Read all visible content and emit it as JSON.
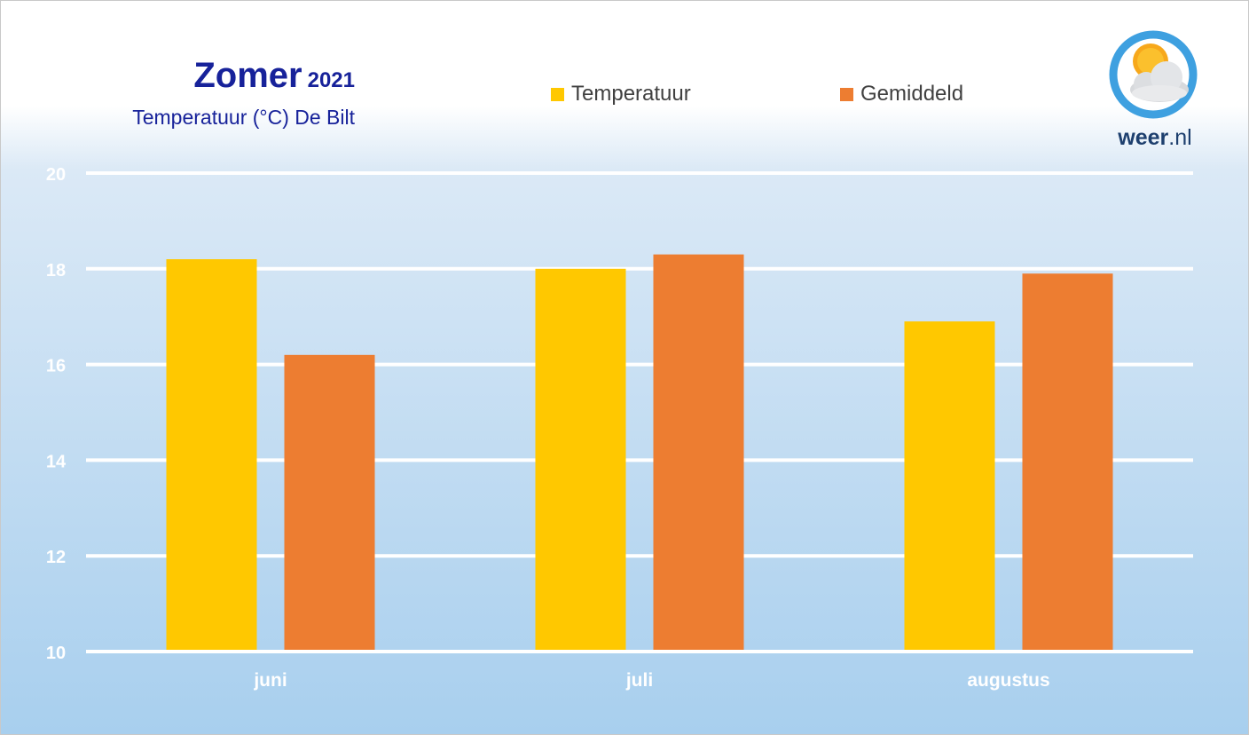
{
  "title": {
    "main": "Zomer",
    "year": "2021",
    "subtitle": "Temperatuur (°C) De Bilt"
  },
  "legend": [
    {
      "label": "Temperatuur",
      "color": "#ffc800"
    },
    {
      "label": "Gemiddeld",
      "color": "#ed7d31"
    }
  ],
  "logo": {
    "brand": "weer",
    "tld": ".nl",
    "icon": "sun-cloud-icon",
    "ring_color": "#3ea0e0"
  },
  "chart_data": {
    "type": "bar",
    "title": "Zomer 2021",
    "subtitle": "Temperatuur (°C) De Bilt",
    "categories": [
      "juni",
      "juli",
      "augustus"
    ],
    "series": [
      {
        "name": "Temperatuur",
        "values": [
          18.2,
          18.0,
          16.9
        ],
        "color": "#ffc800"
      },
      {
        "name": "Gemiddeld",
        "values": [
          16.2,
          18.3,
          17.9
        ],
        "color": "#ed7d31"
      }
    ],
    "ylim": [
      10,
      20
    ],
    "yticks": [
      10,
      12,
      14,
      16,
      18,
      20
    ],
    "grid": true,
    "legend_position": "top"
  }
}
